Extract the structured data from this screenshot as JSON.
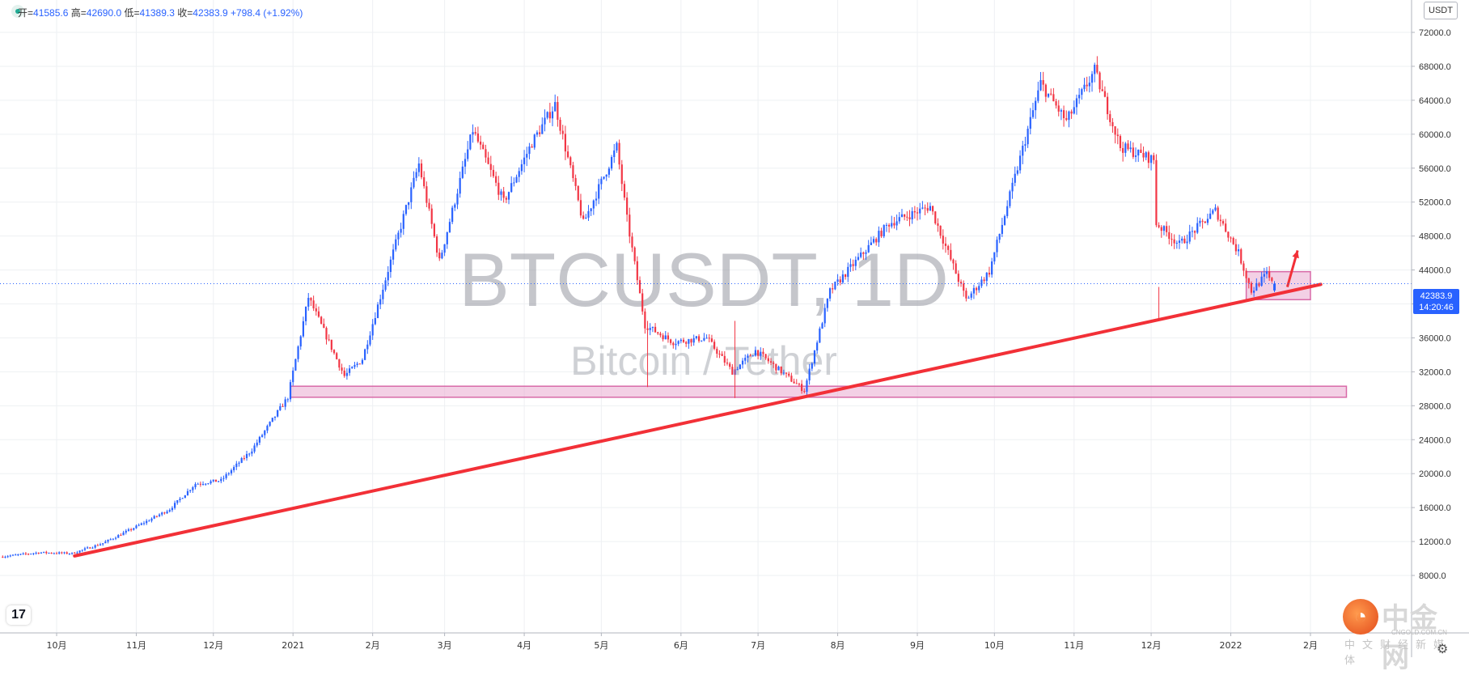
{
  "header": {
    "open_label": "开=",
    "open": "41585.6",
    "high_label": "高=",
    "high": "42690.0",
    "low_label": "低=",
    "low": "41389.3",
    "close_label": "收=",
    "close": "42383.9",
    "change": "+798.4 (+1.92%)"
  },
  "watermark": {
    "symbol": "BTCUSDT, 1D",
    "name": "Bitcoin / Tether"
  },
  "price_scale": {
    "currency": "USDT",
    "current_price": "42383.9",
    "countdown": "14:20:46"
  },
  "brand": {
    "name": "中金网",
    "url": "CNGOLD.COM.CN",
    "tagline": "中文财经新媒体",
    "tv_logo": "17"
  },
  "icons": {
    "status": "status-dot-icon",
    "settings": "gear-icon"
  },
  "colors": {
    "up": "#2962ff",
    "down": "#f23645",
    "trendline": "#f23037",
    "zone_fill": "#e9a9cf",
    "zone_stroke": "#d86aa8",
    "price_line": "#2962ff"
  },
  "chart_data": {
    "type": "candlestick",
    "title": "BTCUSDT, 1D",
    "subtitle": "Bitcoin / Tether",
    "xlabel": "",
    "ylabel": "",
    "ylim": [
      6000,
      75000
    ],
    "grid": true,
    "y_ticks": [
      8000,
      12000,
      16000,
      20000,
      24000,
      28000,
      32000,
      36000,
      40000,
      44000,
      48000,
      52000,
      56000,
      60000,
      64000,
      68000,
      72000
    ],
    "y_tick_labels": [
      "8000.0",
      "12000.0",
      "16000.0",
      "20000.0",
      "24000.0",
      "28000.0",
      "32000.0",
      "36000.0",
      "40000.0",
      "44000.0",
      "48000.0",
      "52000.0",
      "56000.0",
      "60000.0",
      "64000.0",
      "68000.0",
      "72000.0"
    ],
    "x_ticks": [
      {
        "date": "2020-10-01",
        "label": "10月"
      },
      {
        "date": "2020-11-01",
        "label": "11月"
      },
      {
        "date": "2020-12-01",
        "label": "12月"
      },
      {
        "date": "2021-01-01",
        "label": "2021"
      },
      {
        "date": "2021-02-01",
        "label": "2月"
      },
      {
        "date": "2021-03-01",
        "label": "3月"
      },
      {
        "date": "2021-04-01",
        "label": "4月"
      },
      {
        "date": "2021-05-01",
        "label": "5月"
      },
      {
        "date": "2021-06-01",
        "label": "6月"
      },
      {
        "date": "2021-07-01",
        "label": "7月"
      },
      {
        "date": "2021-08-01",
        "label": "8月"
      },
      {
        "date": "2021-09-01",
        "label": "9月"
      },
      {
        "date": "2021-10-01",
        "label": "10月"
      },
      {
        "date": "2021-11-01",
        "label": "11月"
      },
      {
        "date": "2021-12-01",
        "label": "12月"
      },
      {
        "date": "2022-01-01",
        "label": "2022"
      },
      {
        "date": "2022-02-01",
        "label": "2月"
      }
    ],
    "price_path": [
      [
        "2020-09-10",
        10200
      ],
      [
        "2020-09-25",
        10700
      ],
      [
        "2020-10-08",
        10600
      ],
      [
        "2020-10-20",
        11800
      ],
      [
        "2020-11-01",
        13600
      ],
      [
        "2020-11-15",
        15800
      ],
      [
        "2020-11-25",
        18800
      ],
      [
        "2020-12-05",
        19200
      ],
      [
        "2020-12-17",
        22800
      ],
      [
        "2020-12-31",
        29000
      ],
      [
        "2021-01-08",
        40800
      ],
      [
        "2021-01-22",
        31500
      ],
      [
        "2021-01-29",
        33500
      ],
      [
        "2021-02-08",
        44000
      ],
      [
        "2021-02-20",
        56500
      ],
      [
        "2021-02-28",
        45000
      ],
      [
        "2021-03-13",
        60500
      ],
      [
        "2021-03-25",
        52000
      ],
      [
        "2021-04-05",
        59000
      ],
      [
        "2021-04-14",
        63500
      ],
      [
        "2021-04-25",
        49500
      ],
      [
        "2021-05-08",
        58500
      ],
      [
        "2021-05-12",
        50000
      ],
      [
        "2021-05-19",
        37500
      ],
      [
        "2021-05-30",
        35500
      ],
      [
        "2021-06-12",
        36000
      ],
      [
        "2021-06-22",
        32000
      ],
      [
        "2021-07-01",
        34500
      ],
      [
        "2021-07-20",
        29800
      ],
      [
        "2021-07-30",
        41500
      ],
      [
        "2021-08-22",
        49500
      ],
      [
        "2021-09-07",
        51500
      ],
      [
        "2021-09-21",
        40500
      ],
      [
        "2021-09-30",
        43800
      ],
      [
        "2021-10-15",
        60500
      ],
      [
        "2021-10-20",
        66000
      ],
      [
        "2021-10-30",
        61500
      ],
      [
        "2021-11-10",
        67500
      ],
      [
        "2021-11-20",
        58500
      ],
      [
        "2021-12-03",
        57000
      ],
      [
        "2021-12-04",
        49500
      ],
      [
        "2021-12-13",
        47000
      ],
      [
        "2021-12-27",
        51000
      ],
      [
        "2022-01-05",
        46000
      ],
      [
        "2022-01-10",
        41500
      ],
      [
        "2022-01-16",
        43500
      ],
      [
        "2022-01-18",
        42383.9
      ]
    ],
    "last_bar": {
      "date": "2022-01-18",
      "open": 41585.6,
      "high": 42690.0,
      "low": 41389.3,
      "close": 42383.9,
      "change": 798.4,
      "change_pct": 1.92
    },
    "annotations": {
      "trendline": {
        "from": {
          "date": "2020-10-08",
          "price": 10300
        },
        "to": {
          "date": "2022-02-05",
          "price": 42300
        }
      },
      "support_zone": {
        "from_date": "2020-12-31",
        "to_date": "2022-02-15",
        "low": 29000,
        "high": 30300
      },
      "consolidation_box": {
        "from_date": "2022-01-07",
        "to_date": "2022-02-01",
        "low": 40500,
        "high": 43800
      },
      "arrow": {
        "from": {
          "date": "2022-01-23",
          "price": 42000
        },
        "to": {
          "date": "2022-01-27",
          "price": 46300
        }
      }
    }
  }
}
